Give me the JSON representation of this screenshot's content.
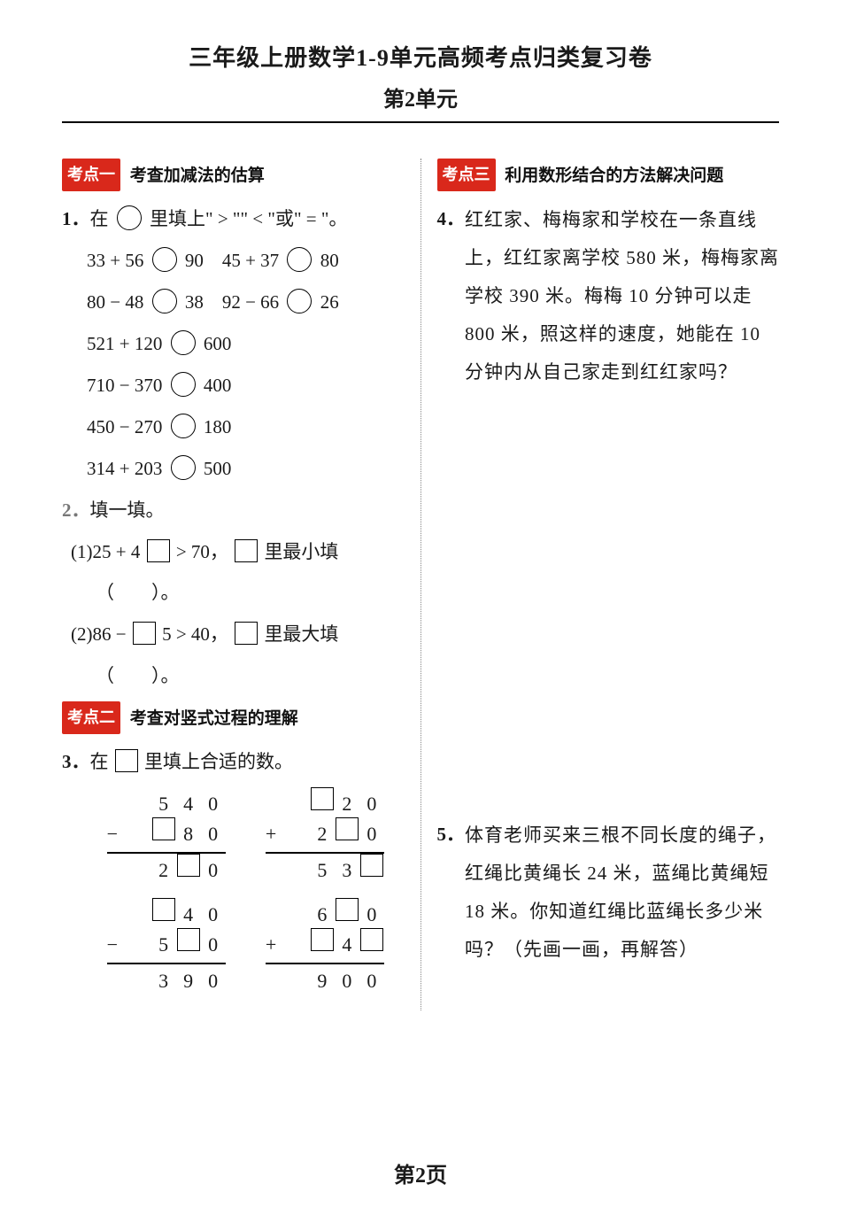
{
  "title": "三年级上册数学1-9单元高频考点归类复习卷",
  "subtitle": "第2单元",
  "footer": "第2页",
  "topic1": {
    "label": "考点一",
    "title": "考查加减法的估算"
  },
  "topic2": {
    "label": "考点二",
    "title": "考查对竖式过程的理解"
  },
  "topic3": {
    "label": "考点三",
    "title": "利用数形结合的方法解决问题"
  },
  "q1": {
    "num": "1．",
    "stem_a": "在",
    "stem_b": "里填上\" > \"\" < \"或\" = \"。",
    "r1a": "33 + 56",
    "r1b": "90",
    "r1c": "45 + 37",
    "r1d": "80",
    "r2a": "80 − 48",
    "r2b": "38",
    "r2c": "92 − 66",
    "r2d": "26",
    "r3a": "521 + 120",
    "r3b": "600",
    "r4a": "710 − 370",
    "r4b": "400",
    "r5a": "450 − 270",
    "r5b": "180",
    "r6a": "314 + 203",
    "r6b": "500"
  },
  "q2": {
    "num": "2．",
    "stem": "填一填。",
    "p1a": "(1)25 + 4",
    "p1b": "> 70，",
    "p1c": "里最小填",
    "p2a": "(2)86 −",
    "p2b": "5 > 40，",
    "p2c": "里最大填",
    "paren": "（　　）。"
  },
  "q3": {
    "num": "3．",
    "stem_a": "在",
    "stem_b": "里填上合适的数。",
    "v1": {
      "r1": [
        "",
        "5",
        "4",
        "0"
      ],
      "op": "−",
      "r2": [
        "",
        "B",
        "8",
        "0"
      ],
      "r3": [
        "",
        "2",
        "B",
        "0"
      ]
    },
    "v2": {
      "r1": [
        "",
        "B",
        "2",
        "0"
      ],
      "op": "+",
      "r2": [
        "",
        "2",
        "B",
        "0"
      ],
      "r3": [
        "",
        "5",
        "3",
        "B"
      ]
    },
    "v3": {
      "r1": [
        "",
        "B",
        "4",
        "0"
      ],
      "op": "−",
      "r2": [
        "",
        "5",
        "B",
        "0"
      ],
      "r3": [
        "",
        "3",
        "9",
        "0"
      ]
    },
    "v4": {
      "r1": [
        "",
        "6",
        "B",
        "0"
      ],
      "op": "+",
      "r2": [
        "",
        "B",
        "4",
        "B"
      ],
      "r3": [
        "",
        "9",
        "0",
        "0"
      ]
    }
  },
  "q4": {
    "num": "4．",
    "text": "红红家、梅梅家和学校在一条直线上，红红家离学校 580 米，梅梅家离学校 390 米。梅梅 10 分钟可以走 800 米，照这样的速度，她能在 10 分钟内从自己家走到红红家吗？"
  },
  "q5": {
    "num": "5．",
    "text": "体育老师买来三根不同长度的绳子，红绳比黄绳长 24 米，蓝绳比黄绳短 18 米。你知道红绳比蓝绳长多少米吗？（先画一画，再解答）"
  }
}
